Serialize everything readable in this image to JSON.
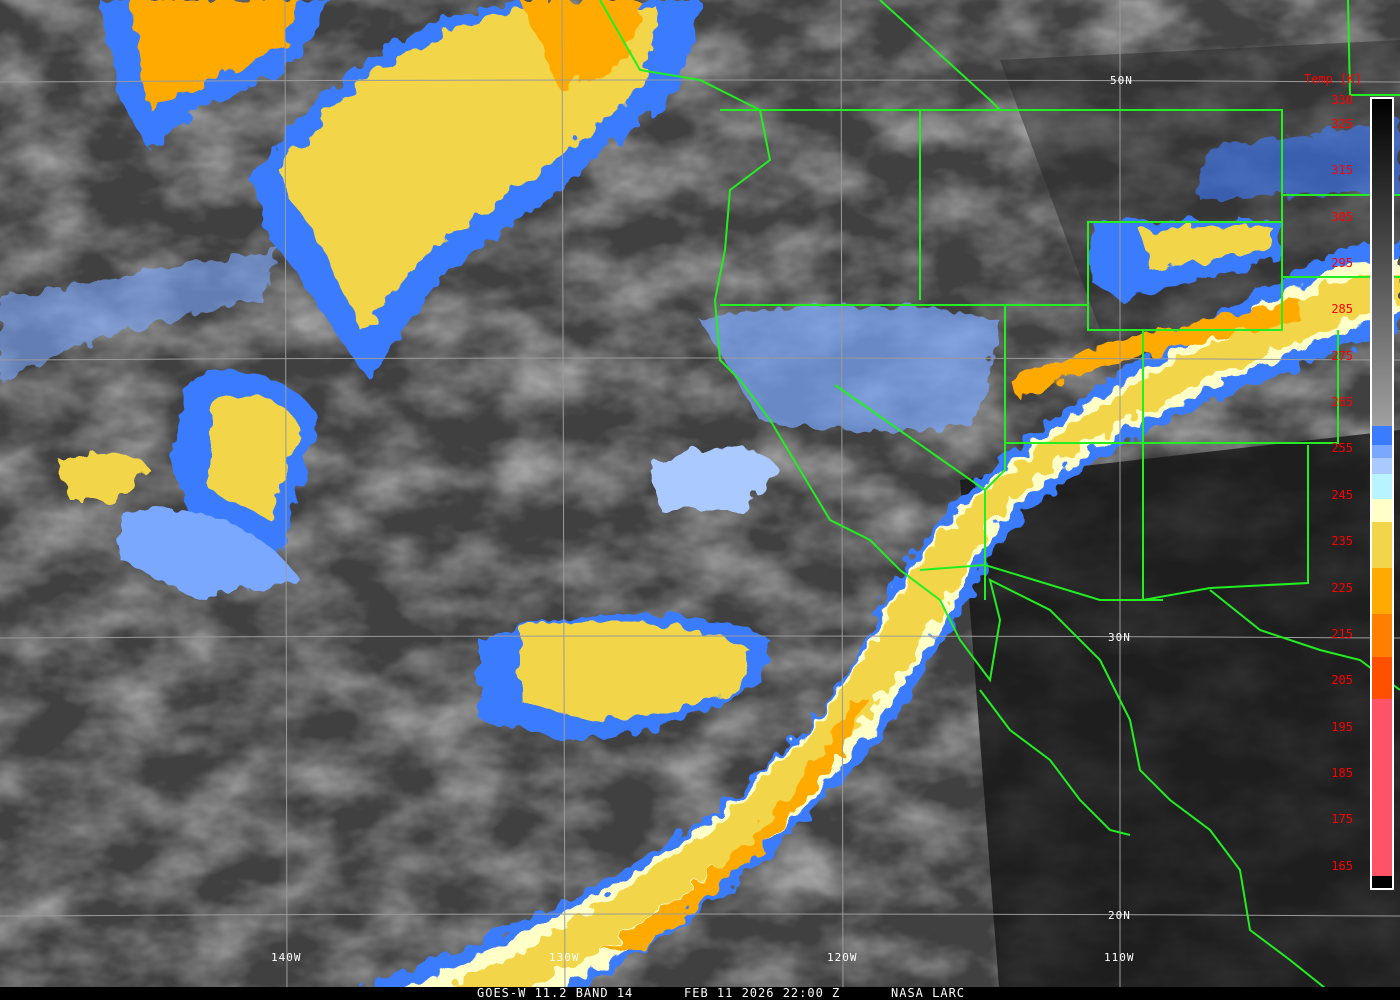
{
  "image": {
    "satellite_label": "GOES-W 11.2 BAND 14",
    "datetime": "FEB 11 2026 22:00 Z",
    "credit": "NASA LARC"
  },
  "grid_labels": {
    "lat": [
      "50N",
      "30N",
      "20N"
    ],
    "lon": [
      "140W",
      "130W",
      "120W",
      "110W"
    ]
  },
  "colorbar": {
    "title": "Temp [K]",
    "labels": [
      "330",
      "325",
      "315",
      "305",
      "295",
      "285",
      "275",
      "265",
      "255",
      "245",
      "235",
      "225",
      "215",
      "205",
      "195",
      "185",
      "175",
      "165"
    ],
    "colors": {
      "warm_top": "#000000",
      "gray_mid": "#a0a0a0",
      "blue": "#3a7bff",
      "mid_blue": "#7aa8ff",
      "light_blue": "#a9c9ff",
      "cyan": "#b8f4ff",
      "cream": "#ffffc8",
      "yellow": "#f2d54a",
      "orange": "#ffaa00",
      "dark_orange": "#ff7f00",
      "red_orange": "#ff5000",
      "pink": "#ff5468"
    }
  },
  "overlay_color": "#22ee22"
}
